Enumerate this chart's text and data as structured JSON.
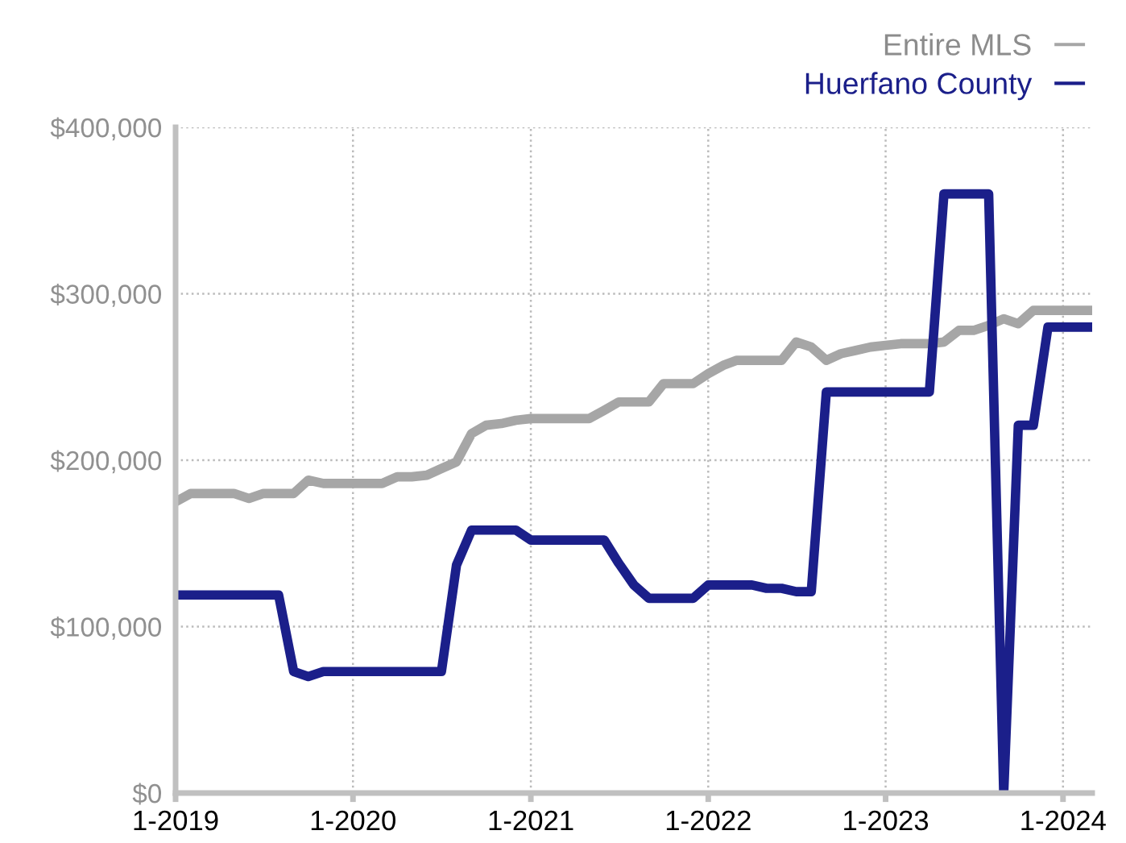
{
  "chart_data": {
    "type": "line",
    "x": [
      "2019-01",
      "2019-02",
      "2019-03",
      "2019-04",
      "2019-05",
      "2019-06",
      "2019-07",
      "2019-08",
      "2019-09",
      "2019-10",
      "2019-11",
      "2019-12",
      "2020-01",
      "2020-02",
      "2020-03",
      "2020-04",
      "2020-05",
      "2020-06",
      "2020-07",
      "2020-08",
      "2020-09",
      "2020-10",
      "2020-11",
      "2020-12",
      "2021-01",
      "2021-02",
      "2021-03",
      "2021-04",
      "2021-05",
      "2021-06",
      "2021-07",
      "2021-08",
      "2021-09",
      "2021-10",
      "2021-11",
      "2021-12",
      "2022-01",
      "2022-02",
      "2022-03",
      "2022-04",
      "2022-05",
      "2022-06",
      "2022-07",
      "2022-08",
      "2022-09",
      "2022-10",
      "2022-11",
      "2022-12",
      "2023-01",
      "2023-02",
      "2023-03",
      "2023-04",
      "2023-05",
      "2023-06",
      "2023-07",
      "2023-08",
      "2023-09",
      "2023-10",
      "2023-11",
      "2023-12",
      "2024-01",
      "2024-02",
      "2024-03"
    ],
    "series": [
      {
        "name": "Entire MLS",
        "color": "#a6a6a6",
        "values": [
          175000,
          180000,
          180000,
          180000,
          180000,
          177000,
          180000,
          180000,
          180000,
          188000,
          186000,
          186000,
          186000,
          186000,
          186000,
          190000,
          190000,
          191000,
          195000,
          199000,
          216000,
          221000,
          222000,
          224000,
          225000,
          225000,
          225000,
          225000,
          225000,
          230000,
          235000,
          235000,
          235000,
          246000,
          246000,
          246000,
          252000,
          257000,
          260000,
          260000,
          260000,
          260000,
          271000,
          268000,
          260000,
          264000,
          266000,
          268000,
          269000,
          270000,
          270000,
          270000,
          271000,
          278000,
          278000,
          281000,
          285000,
          282000,
          290000,
          290000,
          290000,
          290000,
          290000
        ]
      },
      {
        "name": "Huerfano County",
        "color": "#1b1f8a",
        "values": [
          119000,
          119000,
          119000,
          119000,
          119000,
          119000,
          119000,
          119000,
          73000,
          70000,
          73000,
          73000,
          73000,
          73000,
          73000,
          73000,
          73000,
          73000,
          73000,
          137000,
          158000,
          158000,
          158000,
          158000,
          152000,
          152000,
          152000,
          152000,
          152000,
          152000,
          138000,
          125000,
          117000,
          117000,
          117000,
          117000,
          125000,
          125000,
          125000,
          125000,
          123000,
          123000,
          121000,
          121000,
          241000,
          241000,
          241000,
          241000,
          241000,
          241000,
          241000,
          241000,
          360000,
          360000,
          360000,
          360000,
          0,
          221000,
          221000,
          280000,
          280000,
          280000,
          280000
        ]
      }
    ],
    "xlim": [
      "2019-01",
      "2024-03"
    ],
    "xticks": [
      {
        "value": "2019-01",
        "label": "1-2019"
      },
      {
        "value": "2020-01",
        "label": "1-2020"
      },
      {
        "value": "2021-01",
        "label": "1-2021"
      },
      {
        "value": "2022-01",
        "label": "1-2022"
      },
      {
        "value": "2023-01",
        "label": "1-2023"
      },
      {
        "value": "2024-01",
        "label": "1-2024"
      }
    ],
    "ylim": [
      0,
      400000
    ],
    "yticks": [
      {
        "value": 0,
        "label": "$0"
      },
      {
        "value": 100000,
        "label": "$100,000"
      },
      {
        "value": 200000,
        "label": "$200,000"
      },
      {
        "value": 300000,
        "label": "$300,000"
      },
      {
        "value": 400000,
        "label": "$400,000"
      }
    ],
    "grid": true,
    "legend": "top right",
    "line_style": "solid",
    "marker": "none"
  }
}
